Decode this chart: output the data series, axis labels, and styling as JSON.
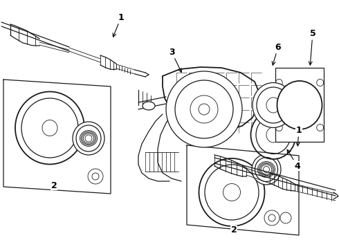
{
  "bg_color": "#ffffff",
  "line_color": "#1a1a1a",
  "lw_thin": 0.6,
  "lw_med": 0.9,
  "lw_thick": 1.3,
  "fig_width": 4.9,
  "fig_height": 3.6,
  "dpi": 100,
  "xlim": [
    0,
    490
  ],
  "ylim": [
    0,
    360
  ]
}
